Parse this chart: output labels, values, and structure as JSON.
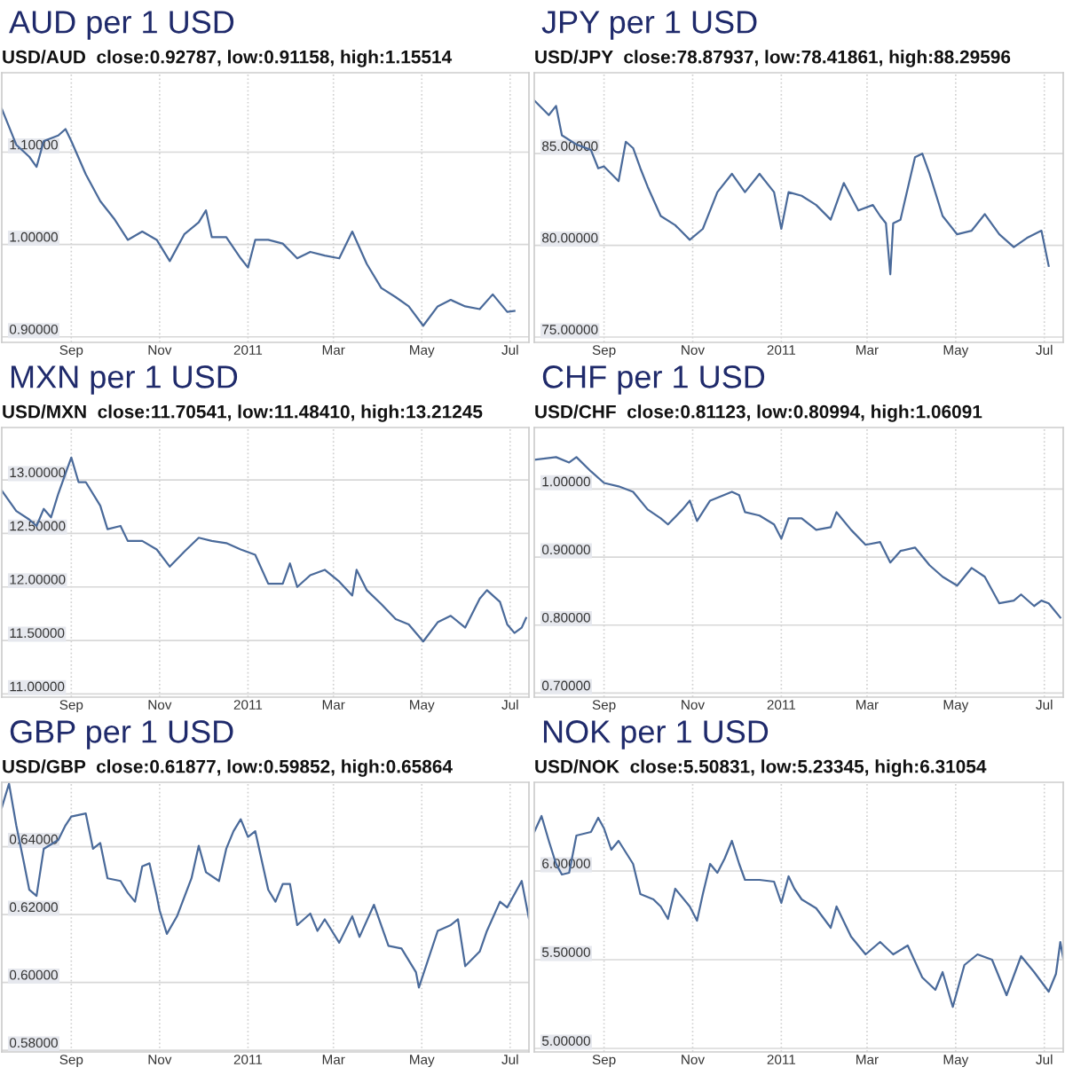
{
  "chart_data": [
    {
      "type": "line",
      "title": "AUD per 1 USD",
      "subtitle": "USD/AUD  close:0.92787, low:0.91158, high:1.15514",
      "grid": true,
      "xlim": [
        "2010-07-15",
        "2011-07-14"
      ],
      "ylim": [
        0.894,
        1.186
      ],
      "xticks": [
        {
          "value": "2010-09-01",
          "label": "Sep"
        },
        {
          "value": "2010-11-01",
          "label": "Nov"
        },
        {
          "value": "2011-01-01",
          "label": "2011"
        },
        {
          "value": "2011-03-01",
          "label": "Mar"
        },
        {
          "value": "2011-05-01",
          "label": "May"
        },
        {
          "value": "2011-07-01",
          "label": "Jul"
        }
      ],
      "yticks": [
        {
          "value": 0.9,
          "label": "0.90000"
        },
        {
          "value": 1.0,
          "label": "1.00000"
        },
        {
          "value": 1.1,
          "label": "1.10000"
        }
      ],
      "x": [
        "2010-07-15",
        "2010-07-25",
        "2010-08-03",
        "2010-08-08",
        "2010-08-13",
        "2010-08-23",
        "2010-08-28",
        "2010-09-01",
        "2010-09-11",
        "2010-09-21",
        "2010-10-01",
        "2010-10-10",
        "2010-10-20",
        "2010-10-30",
        "2010-11-08",
        "2010-11-18",
        "2010-11-28",
        "2010-12-03",
        "2010-12-07",
        "2010-12-17",
        "2010-12-27",
        "2011-01-01",
        "2011-01-06",
        "2011-01-15",
        "2011-01-25",
        "2011-02-04",
        "2011-02-13",
        "2011-02-23",
        "2011-03-05",
        "2011-03-14",
        "2011-03-24",
        "2011-04-03",
        "2011-04-13",
        "2011-04-22",
        "2011-05-02",
        "2011-05-12",
        "2011-05-21",
        "2011-05-31",
        "2011-06-10",
        "2011-06-19",
        "2011-06-29",
        "2011-07-04"
      ],
      "series": [
        {
          "color": "#4a6a9a",
          "values": [
            1.147,
            1.108,
            1.095,
            1.084,
            1.112,
            1.118,
            1.125,
            1.112,
            1.076,
            1.047,
            1.027,
            1.005,
            1.014,
            1.005,
            0.982,
            1.011,
            1.024,
            1.037,
            1.008,
            1.008,
            0.985,
            0.975,
            1.005,
            1.005,
            1.001,
            0.985,
            0.992,
            0.988,
            0.985,
            1.014,
            0.979,
            0.953,
            0.943,
            0.933,
            0.912,
            0.933,
            0.94,
            0.933,
            0.93,
            0.946,
            0.927,
            0.928
          ]
        }
      ]
    },
    {
      "type": "line",
      "title": "JPY per 1 USD",
      "subtitle": "USD/JPY  close:78.87937, low:78.41861, high:88.29596",
      "grid": true,
      "xlim": [
        "2010-07-15",
        "2011-07-14"
      ],
      "ylim": [
        74.71,
        89.41
      ],
      "xticks": [
        {
          "value": "2010-09-01",
          "label": "Sep"
        },
        {
          "value": "2010-11-01",
          "label": "Nov"
        },
        {
          "value": "2011-01-01",
          "label": "2011"
        },
        {
          "value": "2011-03-01",
          "label": "Mar"
        },
        {
          "value": "2011-05-01",
          "label": "May"
        },
        {
          "value": "2011-07-01",
          "label": "Jul"
        }
      ],
      "yticks": [
        {
          "value": 75,
          "label": "75.00000"
        },
        {
          "value": 80,
          "label": "80.00000"
        },
        {
          "value": 85,
          "label": "85.00000"
        }
      ],
      "x": [
        "2010-07-15",
        "2010-07-25",
        "2010-07-30",
        "2010-08-03",
        "2010-08-13",
        "2010-08-23",
        "2010-08-28",
        "2010-09-01",
        "2010-09-11",
        "2010-09-16",
        "2010-09-21",
        "2010-09-26",
        "2010-10-01",
        "2010-10-10",
        "2010-10-20",
        "2010-10-30",
        "2010-11-08",
        "2010-11-18",
        "2010-11-28",
        "2010-12-07",
        "2010-12-17",
        "2010-12-27",
        "2011-01-01",
        "2011-01-06",
        "2011-01-15",
        "2011-01-25",
        "2011-02-04",
        "2011-02-13",
        "2011-02-23",
        "2011-03-05",
        "2011-03-10",
        "2011-03-14",
        "2011-03-17",
        "2011-03-19",
        "2011-03-24",
        "2011-04-03",
        "2011-04-08",
        "2011-04-13",
        "2011-04-22",
        "2011-05-02",
        "2011-05-12",
        "2011-05-21",
        "2011-05-31",
        "2011-06-10",
        "2011-06-19",
        "2011-06-29",
        "2011-07-04"
      ],
      "series": [
        {
          "color": "#4a6a9a",
          "values": [
            87.9,
            87.1,
            87.6,
            86.0,
            85.5,
            85.2,
            84.2,
            84.3,
            83.5,
            85.65,
            85.3,
            84.2,
            83.2,
            81.6,
            81.1,
            80.3,
            80.9,
            82.9,
            83.9,
            82.9,
            83.9,
            82.9,
            80.9,
            82.9,
            82.7,
            82.2,
            81.4,
            83.4,
            81.9,
            82.2,
            81.6,
            81.2,
            78.42,
            81.2,
            81.4,
            84.8,
            85.0,
            83.9,
            81.6,
            80.6,
            80.8,
            81.7,
            80.6,
            79.9,
            80.4,
            80.8,
            78.88
          ]
        }
      ]
    },
    {
      "type": "line",
      "title": "MXN per 1 USD",
      "subtitle": "USD/MXN  close:11.70541, low:11.48410, high:13.21245",
      "grid": true,
      "xlim": [
        "2010-07-15",
        "2011-07-14"
      ],
      "ylim": [
        10.97,
        13.49
      ],
      "xticks": [
        {
          "value": "2010-09-01",
          "label": "Sep"
        },
        {
          "value": "2010-11-01",
          "label": "Nov"
        },
        {
          "value": "2011-01-01",
          "label": "2011"
        },
        {
          "value": "2011-03-01",
          "label": "Mar"
        },
        {
          "value": "2011-05-01",
          "label": "May"
        },
        {
          "value": "2011-07-01",
          "label": "Jul"
        }
      ],
      "yticks": [
        {
          "value": 11.0,
          "label": "11.00000"
        },
        {
          "value": 11.5,
          "label": "11.50000"
        },
        {
          "value": 12.0,
          "label": "12.00000"
        },
        {
          "value": 12.5,
          "label": "12.50000"
        },
        {
          "value": 13.0,
          "label": "13.00000"
        }
      ],
      "x": [
        "2010-07-15",
        "2010-07-25",
        "2010-08-03",
        "2010-08-08",
        "2010-08-13",
        "2010-08-18",
        "2010-08-23",
        "2010-08-28",
        "2010-09-01",
        "2010-09-06",
        "2010-09-11",
        "2010-09-21",
        "2010-09-26",
        "2010-10-05",
        "2010-10-10",
        "2010-10-20",
        "2010-10-30",
        "2010-11-08",
        "2010-11-18",
        "2010-11-28",
        "2010-12-07",
        "2010-12-17",
        "2010-12-27",
        "2011-01-06",
        "2011-01-15",
        "2011-01-25",
        "2011-01-30",
        "2011-02-04",
        "2011-02-13",
        "2011-02-23",
        "2011-03-05",
        "2011-03-14",
        "2011-03-17",
        "2011-03-24",
        "2011-04-03",
        "2011-04-13",
        "2011-04-22",
        "2011-05-02",
        "2011-05-12",
        "2011-05-21",
        "2011-05-31",
        "2011-06-10",
        "2011-06-15",
        "2011-06-24",
        "2011-06-29",
        "2011-07-04",
        "2011-07-09",
        "2011-07-12"
      ],
      "series": [
        {
          "color": "#4a6a9a",
          "values": [
            12.9,
            12.71,
            12.63,
            12.57,
            12.73,
            12.65,
            12.87,
            13.06,
            13.21,
            12.98,
            12.98,
            12.76,
            12.54,
            12.57,
            12.43,
            12.43,
            12.35,
            12.19,
            12.33,
            12.46,
            12.43,
            12.41,
            12.35,
            12.3,
            12.03,
            12.03,
            12.22,
            12.0,
            12.11,
            12.16,
            12.05,
            11.92,
            12.16,
            11.97,
            11.84,
            11.7,
            11.65,
            11.49,
            11.67,
            11.73,
            11.62,
            11.89,
            11.97,
            11.86,
            11.65,
            11.57,
            11.62,
            11.71
          ]
        }
      ]
    },
    {
      "type": "line",
      "title": "CHF per 1 USD",
      "subtitle": "USD/CHF  close:0.81123, low:0.80994, high:1.06091",
      "grid": true,
      "xlim": [
        "2010-07-15",
        "2011-07-14"
      ],
      "ylim": [
        0.694,
        1.0905
      ],
      "xticks": [
        {
          "value": "2010-09-01",
          "label": "Sep"
        },
        {
          "value": "2010-11-01",
          "label": "Nov"
        },
        {
          "value": "2011-01-01",
          "label": "2011"
        },
        {
          "value": "2011-03-01",
          "label": "Mar"
        },
        {
          "value": "2011-05-01",
          "label": "May"
        },
        {
          "value": "2011-07-01",
          "label": "Jul"
        }
      ],
      "yticks": [
        {
          "value": 0.7,
          "label": "0.70000"
        },
        {
          "value": 0.8,
          "label": "0.80000"
        },
        {
          "value": 0.9,
          "label": "0.90000"
        },
        {
          "value": 1.0,
          "label": "1.00000"
        }
      ],
      "x": [
        "2010-07-15",
        "2010-07-30",
        "2010-08-08",
        "2010-08-13",
        "2010-08-23",
        "2010-09-01",
        "2010-09-11",
        "2010-09-21",
        "2010-10-01",
        "2010-10-10",
        "2010-10-15",
        "2010-10-25",
        "2010-10-30",
        "2010-11-04",
        "2010-11-13",
        "2010-11-28",
        "2010-12-03",
        "2010-12-07",
        "2010-12-17",
        "2010-12-27",
        "2011-01-01",
        "2011-01-06",
        "2011-01-15",
        "2011-01-25",
        "2011-02-04",
        "2011-02-08",
        "2011-02-18",
        "2011-02-28",
        "2011-03-10",
        "2011-03-17",
        "2011-03-24",
        "2011-04-03",
        "2011-04-13",
        "2011-04-22",
        "2011-05-02",
        "2011-05-12",
        "2011-05-21",
        "2011-05-31",
        "2011-06-10",
        "2011-06-15",
        "2011-06-24",
        "2011-06-29",
        "2011-07-04",
        "2011-07-12"
      ],
      "series": [
        {
          "color": "#4a6a9a",
          "values": [
            1.043,
            1.047,
            1.039,
            1.047,
            1.026,
            1.009,
            1.004,
            0.996,
            0.97,
            0.957,
            0.948,
            0.97,
            0.983,
            0.953,
            0.983,
            0.996,
            0.991,
            0.966,
            0.961,
            0.948,
            0.927,
            0.957,
            0.957,
            0.94,
            0.944,
            0.966,
            0.94,
            0.918,
            0.922,
            0.892,
            0.909,
            0.914,
            0.888,
            0.871,
            0.858,
            0.884,
            0.871,
            0.832,
            0.836,
            0.845,
            0.828,
            0.836,
            0.832,
            0.811
          ]
        }
      ]
    },
    {
      "type": "line",
      "title": "GBP per 1 USD",
      "subtitle": "USD/GBP  close:0.61877, low:0.59852, high:0.65864",
      "grid": true,
      "xlim": [
        "2010-07-15",
        "2011-07-14"
      ],
      "ylim": [
        0.5795,
        0.659
      ],
      "xticks": [
        {
          "value": "2010-09-01",
          "label": "Sep"
        },
        {
          "value": "2010-11-01",
          "label": "Nov"
        },
        {
          "value": "2011-01-01",
          "label": "2011"
        },
        {
          "value": "2011-03-01",
          "label": "Mar"
        },
        {
          "value": "2011-05-01",
          "label": "May"
        },
        {
          "value": "2011-07-01",
          "label": "Jul"
        }
      ],
      "yticks": [
        {
          "value": 0.58,
          "label": "0.58000"
        },
        {
          "value": 0.6,
          "label": "0.60000"
        },
        {
          "value": 0.62,
          "label": "0.62000"
        },
        {
          "value": 0.64,
          "label": "0.64000"
        }
      ],
      "x": [
        "2010-07-15",
        "2010-07-20",
        "2010-07-25",
        "2010-07-30",
        "2010-08-03",
        "2010-08-08",
        "2010-08-13",
        "2010-08-23",
        "2010-08-28",
        "2010-09-01",
        "2010-09-11",
        "2010-09-16",
        "2010-09-21",
        "2010-09-26",
        "2010-10-05",
        "2010-10-10",
        "2010-10-15",
        "2010-10-20",
        "2010-10-25",
        "2010-10-30",
        "2010-11-01",
        "2010-11-06",
        "2010-11-13",
        "2010-11-23",
        "2010-11-28",
        "2010-12-03",
        "2010-12-12",
        "2010-12-17",
        "2010-12-22",
        "2010-12-27",
        "2011-01-01",
        "2011-01-06",
        "2011-01-15",
        "2011-01-20",
        "2011-01-25",
        "2011-01-30",
        "2011-02-04",
        "2011-02-13",
        "2011-02-18",
        "2011-02-23",
        "2011-03-05",
        "2011-03-14",
        "2011-03-19",
        "2011-03-29",
        "2011-04-08",
        "2011-04-17",
        "2011-04-27",
        "2011-04-29",
        "2011-05-12",
        "2011-05-21",
        "2011-05-26",
        "2011-05-31",
        "2011-06-10",
        "2011-06-15",
        "2011-06-24",
        "2011-06-29",
        "2011-07-09",
        "2011-07-14"
      ],
      "series": [
        {
          "color": "#4a6a9a",
          "values": [
            0.6515,
            0.6586,
            0.6463,
            0.6359,
            0.6273,
            0.6255,
            0.6394,
            0.642,
            0.6463,
            0.6489,
            0.6498,
            0.6394,
            0.6411,
            0.6307,
            0.6299,
            0.6264,
            0.6238,
            0.6342,
            0.6351,
            0.6255,
            0.6212,
            0.6143,
            0.6195,
            0.6307,
            0.6403,
            0.6325,
            0.6299,
            0.6394,
            0.6446,
            0.6481,
            0.6429,
            0.6446,
            0.6273,
            0.6238,
            0.629,
            0.629,
            0.6169,
            0.6203,
            0.6152,
            0.6186,
            0.6117,
            0.6195,
            0.6134,
            0.6229,
            0.6108,
            0.61,
            0.603,
            0.5985,
            0.6152,
            0.6169,
            0.6186,
            0.6048,
            0.6091,
            0.6152,
            0.6238,
            0.6221,
            0.6299,
            0.6188
          ]
        }
      ]
    },
    {
      "type": "line",
      "title": "NOK per 1 USD",
      "subtitle": "USD/NOK  close:5.50831, low:5.23345, high:6.31054",
      "grid": true,
      "xlim": [
        "2010-07-15",
        "2011-07-14"
      ],
      "ylim": [
        4.98,
        6.5
      ],
      "xticks": [
        {
          "value": "2010-09-01",
          "label": "Sep"
        },
        {
          "value": "2010-11-01",
          "label": "Nov"
        },
        {
          "value": "2011-01-01",
          "label": "2011"
        },
        {
          "value": "2011-03-01",
          "label": "Mar"
        },
        {
          "value": "2011-05-01",
          "label": "May"
        },
        {
          "value": "2011-07-01",
          "label": "Jul"
        }
      ],
      "yticks": [
        {
          "value": 5.0,
          "label": "5.00000"
        },
        {
          "value": 5.5,
          "label": "5.50000"
        },
        {
          "value": 6.0,
          "label": "6.00000"
        }
      ],
      "x": [
        "2010-07-15",
        "2010-07-20",
        "2010-07-25",
        "2010-07-30",
        "2010-08-03",
        "2010-08-08",
        "2010-08-13",
        "2010-08-23",
        "2010-08-28",
        "2010-09-01",
        "2010-09-06",
        "2010-09-11",
        "2010-09-21",
        "2010-09-26",
        "2010-10-05",
        "2010-10-10",
        "2010-10-15",
        "2010-10-20",
        "2010-10-30",
        "2010-11-04",
        "2010-11-08",
        "2010-11-13",
        "2010-11-18",
        "2010-11-23",
        "2010-11-28",
        "2010-12-03",
        "2010-12-07",
        "2010-12-17",
        "2010-12-27",
        "2011-01-01",
        "2011-01-06",
        "2011-01-10",
        "2011-01-15",
        "2011-01-25",
        "2011-02-04",
        "2011-02-08",
        "2011-02-18",
        "2011-02-28",
        "2011-03-10",
        "2011-03-19",
        "2011-03-29",
        "2011-04-08",
        "2011-04-17",
        "2011-04-22",
        "2011-04-29",
        "2011-05-07",
        "2011-05-16",
        "2011-05-26",
        "2011-06-05",
        "2011-06-15",
        "2011-06-24",
        "2011-07-04",
        "2011-07-09",
        "2011-07-12",
        "2011-07-14"
      ],
      "series": [
        {
          "color": "#4a6a9a",
          "values": [
            6.22,
            6.31,
            6.17,
            6.04,
            5.98,
            5.99,
            6.2,
            6.22,
            6.3,
            6.24,
            6.12,
            6.17,
            6.04,
            5.87,
            5.84,
            5.8,
            5.73,
            5.9,
            5.8,
            5.72,
            5.87,
            6.04,
            5.99,
            6.07,
            6.17,
            6.04,
            5.95,
            5.95,
            5.94,
            5.82,
            5.97,
            5.9,
            5.84,
            5.79,
            5.68,
            5.8,
            5.63,
            5.53,
            5.6,
            5.53,
            5.58,
            5.4,
            5.33,
            5.43,
            5.2335,
            5.47,
            5.53,
            5.5,
            5.3,
            5.52,
            5.43,
            5.32,
            5.42,
            5.6,
            5.508
          ]
        }
      ]
    }
  ]
}
